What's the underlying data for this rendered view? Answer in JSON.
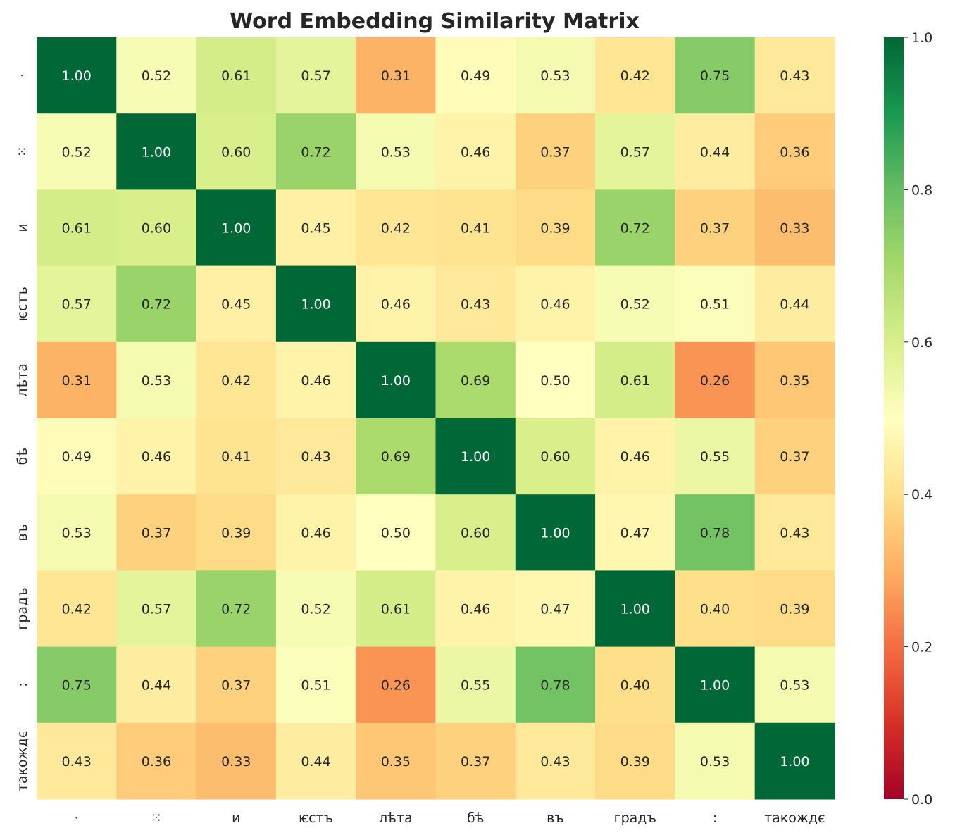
{
  "chart_data": {
    "type": "heatmap",
    "title": "Word Embedding Similarity Matrix",
    "xlabel": "",
    "ylabel": "",
    "labels": [
      "·",
      "⁙",
      "и",
      "ѥстъ",
      "лѣта",
      "бѣ",
      "въ",
      "градъ",
      ":",
      "такождє"
    ],
    "values": [
      [
        1.0,
        0.52,
        0.61,
        0.57,
        0.31,
        0.49,
        0.53,
        0.42,
        0.75,
        0.43
      ],
      [
        0.52,
        1.0,
        0.6,
        0.72,
        0.53,
        0.46,
        0.37,
        0.57,
        0.44,
        0.36
      ],
      [
        0.61,
        0.6,
        1.0,
        0.45,
        0.42,
        0.41,
        0.39,
        0.72,
        0.37,
        0.33
      ],
      [
        0.57,
        0.72,
        0.45,
        1.0,
        0.46,
        0.43,
        0.46,
        0.52,
        0.51,
        0.44
      ],
      [
        0.31,
        0.53,
        0.42,
        0.46,
        1.0,
        0.69,
        0.5,
        0.61,
        0.26,
        0.35
      ],
      [
        0.49,
        0.46,
        0.41,
        0.43,
        0.69,
        1.0,
        0.6,
        0.46,
        0.55,
        0.37
      ],
      [
        0.53,
        0.37,
        0.39,
        0.46,
        0.5,
        0.6,
        1.0,
        0.47,
        0.78,
        0.43
      ],
      [
        0.42,
        0.57,
        0.72,
        0.52,
        0.61,
        0.46,
        0.47,
        1.0,
        0.4,
        0.39
      ],
      [
        0.75,
        0.44,
        0.37,
        0.51,
        0.26,
        0.55,
        0.78,
        0.4,
        1.0,
        0.53
      ],
      [
        0.43,
        0.36,
        0.33,
        0.44,
        0.35,
        0.37,
        0.43,
        0.39,
        0.53,
        1.0
      ]
    ],
    "colormap": "RdYlGn",
    "vmin": 0.0,
    "vmax": 1.0,
    "colorbar_ticks": [
      "0.0",
      "0.2",
      "0.4",
      "0.6",
      "0.8",
      "1.0"
    ],
    "annotation_format": "0.00",
    "grid": false,
    "legend": "colorbar-right"
  }
}
